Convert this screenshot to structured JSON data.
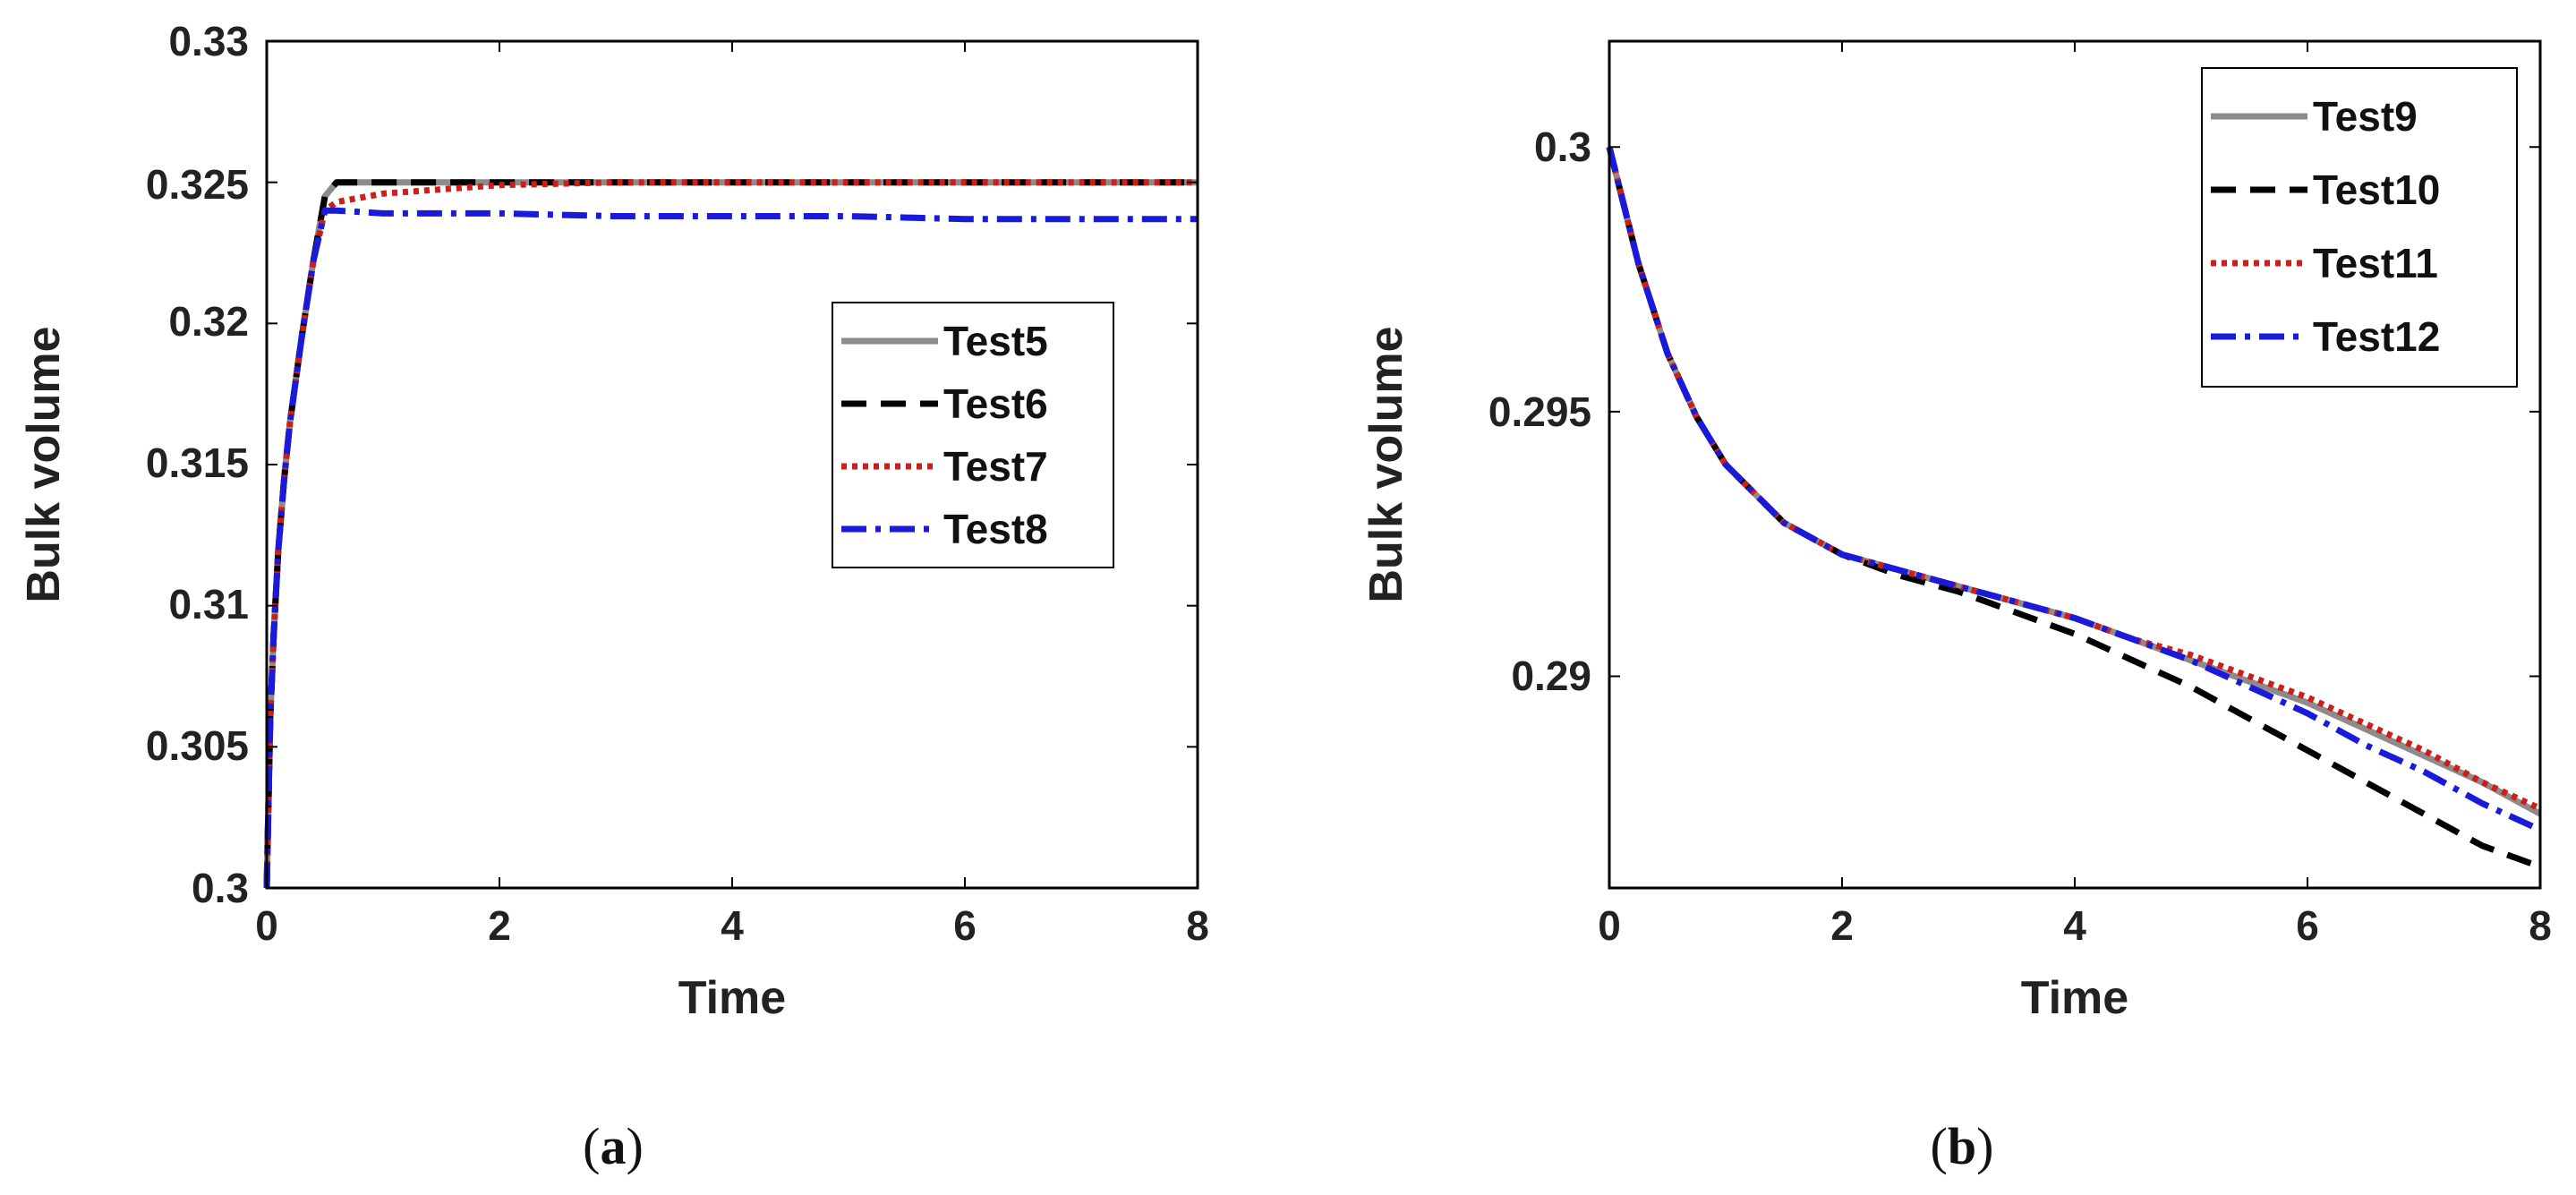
{
  "colors": {
    "gray": "#8c8c8c",
    "black": "#000000",
    "red": "#cc1f1a",
    "blue": "#1a1adb",
    "axis": "#000000"
  },
  "chart_data": [
    {
      "id": "a",
      "type": "line",
      "caption_letter": "a",
      "xlabel": "Time",
      "ylabel": "Bulk volume",
      "xlim": [
        0,
        8
      ],
      "ylim": [
        0.3,
        0.33
      ],
      "xticks": [
        0,
        2,
        4,
        6,
        8
      ],
      "xtick_labels": [
        "0",
        "2",
        "4",
        "6",
        "8"
      ],
      "yticks": [
        0.3,
        0.305,
        0.31,
        0.315,
        0.32,
        0.325,
        0.33
      ],
      "ytick_labels": [
        "0.3",
        "0.305",
        "0.31",
        "0.315",
        "0.32",
        "0.325",
        "0.33"
      ],
      "legend_position": "center-right",
      "series": [
        {
          "name": "Test5",
          "style": "solid",
          "color": "#8c8c8c",
          "x": [
            0,
            0.03,
            0.06,
            0.1,
            0.15,
            0.2,
            0.3,
            0.4,
            0.5,
            0.6,
            0.8,
            1,
            2,
            3,
            4,
            5,
            6,
            7,
            8
          ],
          "y": [
            0.3,
            0.306,
            0.309,
            0.312,
            0.3145,
            0.3165,
            0.3195,
            0.3222,
            0.3245,
            0.325,
            0.325,
            0.325,
            0.325,
            0.325,
            0.325,
            0.325,
            0.325,
            0.325,
            0.325
          ]
        },
        {
          "name": "Test6",
          "style": "dashed",
          "color": "#000000",
          "x": [
            0,
            0.03,
            0.06,
            0.1,
            0.15,
            0.2,
            0.3,
            0.4,
            0.5,
            0.6,
            0.8,
            1,
            2,
            3,
            4,
            5,
            6,
            7,
            8
          ],
          "y": [
            0.3,
            0.306,
            0.309,
            0.312,
            0.3145,
            0.3165,
            0.3195,
            0.3222,
            0.3245,
            0.325,
            0.325,
            0.325,
            0.325,
            0.325,
            0.325,
            0.325,
            0.325,
            0.325,
            0.325
          ]
        },
        {
          "name": "Test7",
          "style": "dotted",
          "color": "#cc1f1a",
          "x": [
            0,
            0.03,
            0.06,
            0.1,
            0.15,
            0.2,
            0.3,
            0.4,
            0.5,
            0.6,
            1,
            2,
            3,
            4,
            5,
            6,
            7,
            8
          ],
          "y": [
            0.3,
            0.306,
            0.309,
            0.312,
            0.3145,
            0.3165,
            0.3195,
            0.3222,
            0.324,
            0.3243,
            0.3246,
            0.3249,
            0.325,
            0.325,
            0.325,
            0.325,
            0.325,
            0.325
          ]
        },
        {
          "name": "Test8",
          "style": "dashdot",
          "color": "#1a1adb",
          "x": [
            0,
            0.03,
            0.06,
            0.1,
            0.15,
            0.2,
            0.3,
            0.4,
            0.5,
            0.6,
            1,
            2,
            3,
            4,
            5,
            6,
            7,
            8
          ],
          "y": [
            0.3,
            0.306,
            0.309,
            0.312,
            0.3145,
            0.3165,
            0.3195,
            0.3222,
            0.324,
            0.324,
            0.3239,
            0.3239,
            0.3238,
            0.3238,
            0.3238,
            0.3237,
            0.3237,
            0.3237
          ]
        }
      ]
    },
    {
      "id": "b",
      "type": "line",
      "caption_letter": "b",
      "xlabel": "Time",
      "ylabel": "Bulk volume",
      "xlim": [
        0,
        8
      ],
      "ylim": [
        0.286,
        0.302
      ],
      "xticks": [
        0,
        2,
        4,
        6,
        8
      ],
      "xtick_labels": [
        "0",
        "2",
        "4",
        "6",
        "8"
      ],
      "yticks": [
        0.29,
        0.295,
        0.3
      ],
      "ytick_labels": [
        "0.29",
        "0.295",
        "0.3"
      ],
      "legend_position": "top-right",
      "series": [
        {
          "name": "Test9",
          "style": "solid",
          "color": "#8c8c8c",
          "x": [
            0,
            0.25,
            0.5,
            0.75,
            1,
            1.5,
            2,
            2.5,
            3,
            3.5,
            4,
            4.5,
            5,
            5.5,
            6,
            6.5,
            7,
            7.5,
            8
          ],
          "y": [
            0.3,
            0.2978,
            0.2961,
            0.2949,
            0.294,
            0.2929,
            0.2923,
            0.292,
            0.2917,
            0.2914,
            0.2911,
            0.2907,
            0.2903,
            0.2899,
            0.2895,
            0.289,
            0.2885,
            0.288,
            0.2874
          ]
        },
        {
          "name": "Test10",
          "style": "dashed",
          "color": "#000000",
          "x": [
            0,
            0.25,
            0.5,
            0.75,
            1,
            1.5,
            2,
            2.5,
            3,
            3.5,
            4,
            4.5,
            5,
            5.5,
            6,
            6.5,
            7,
            7.5,
            8
          ],
          "y": [
            0.3,
            0.2978,
            0.2961,
            0.2949,
            0.294,
            0.2929,
            0.2923,
            0.2919,
            0.2916,
            0.2912,
            0.2908,
            0.2903,
            0.2898,
            0.2892,
            0.2886,
            0.288,
            0.2874,
            0.2868,
            0.2864
          ]
        },
        {
          "name": "Test11",
          "style": "dotted",
          "color": "#cc1f1a",
          "x": [
            0,
            0.25,
            0.5,
            0.75,
            1,
            1.5,
            2,
            2.5,
            3,
            3.5,
            4,
            4.5,
            5,
            5.5,
            6,
            6.5,
            7,
            7.5,
            8
          ],
          "y": [
            0.3,
            0.2978,
            0.2961,
            0.2949,
            0.294,
            0.2929,
            0.2923,
            0.292,
            0.2917,
            0.2914,
            0.2911,
            0.2907,
            0.2904,
            0.29,
            0.2896,
            0.2891,
            0.2886,
            0.288,
            0.2875
          ]
        },
        {
          "name": "Test12",
          "style": "dashdot",
          "color": "#1a1adb",
          "x": [
            0,
            0.25,
            0.5,
            0.75,
            1,
            1.5,
            2,
            2.5,
            3,
            3.5,
            4,
            4.5,
            5,
            5.5,
            6,
            6.5,
            7,
            7.5,
            8
          ],
          "y": [
            0.3,
            0.2978,
            0.2961,
            0.2949,
            0.294,
            0.2929,
            0.2923,
            0.292,
            0.2917,
            0.2914,
            0.2911,
            0.2907,
            0.2903,
            0.2898,
            0.2893,
            0.2887,
            0.2882,
            0.2876,
            0.2871
          ]
        }
      ]
    }
  ]
}
